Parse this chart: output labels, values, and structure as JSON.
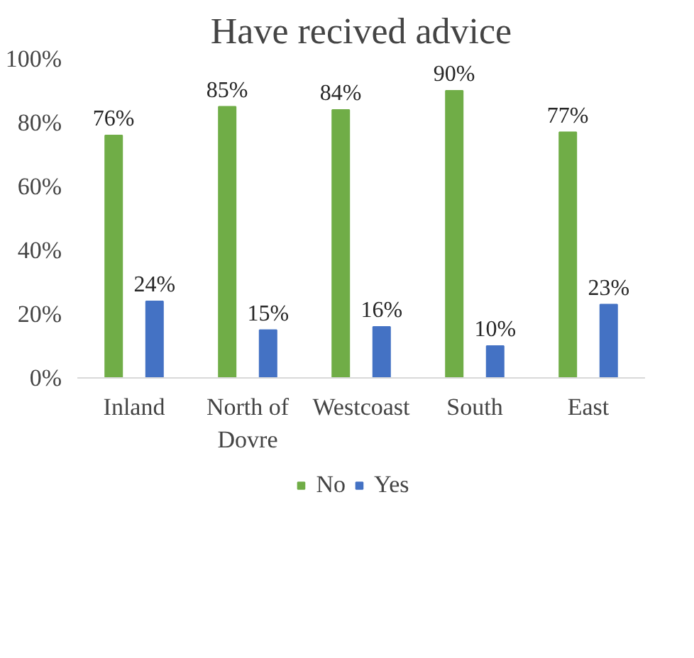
{
  "chart_data": {
    "type": "bar",
    "title": "Have recived advice",
    "categories": [
      "Inland",
      "North of Dovre",
      "Westcoast",
      "South",
      "East"
    ],
    "series": [
      {
        "name": "No",
        "color": "#70ad47",
        "values": [
          76,
          85,
          84,
          90,
          77
        ],
        "value_labels": [
          "76%",
          "85%",
          "84%",
          "90%",
          "77%"
        ]
      },
      {
        "name": "Yes",
        "color": "#4472c4",
        "values": [
          24,
          15,
          16,
          10,
          23
        ],
        "value_labels": [
          "24%",
          "15%",
          "16%",
          "10%",
          "23%"
        ]
      }
    ],
    "ylim": [
      0,
      100
    ],
    "yticks": [
      {
        "value": 0,
        "label": "0%"
      },
      {
        "value": 20,
        "label": "20%"
      },
      {
        "value": 40,
        "label": "40%"
      },
      {
        "value": 60,
        "label": "60%"
      },
      {
        "value": 80,
        "label": "80%"
      },
      {
        "value": 100,
        "label": "100%"
      }
    ],
    "grid": false,
    "legend": "bottom"
  }
}
